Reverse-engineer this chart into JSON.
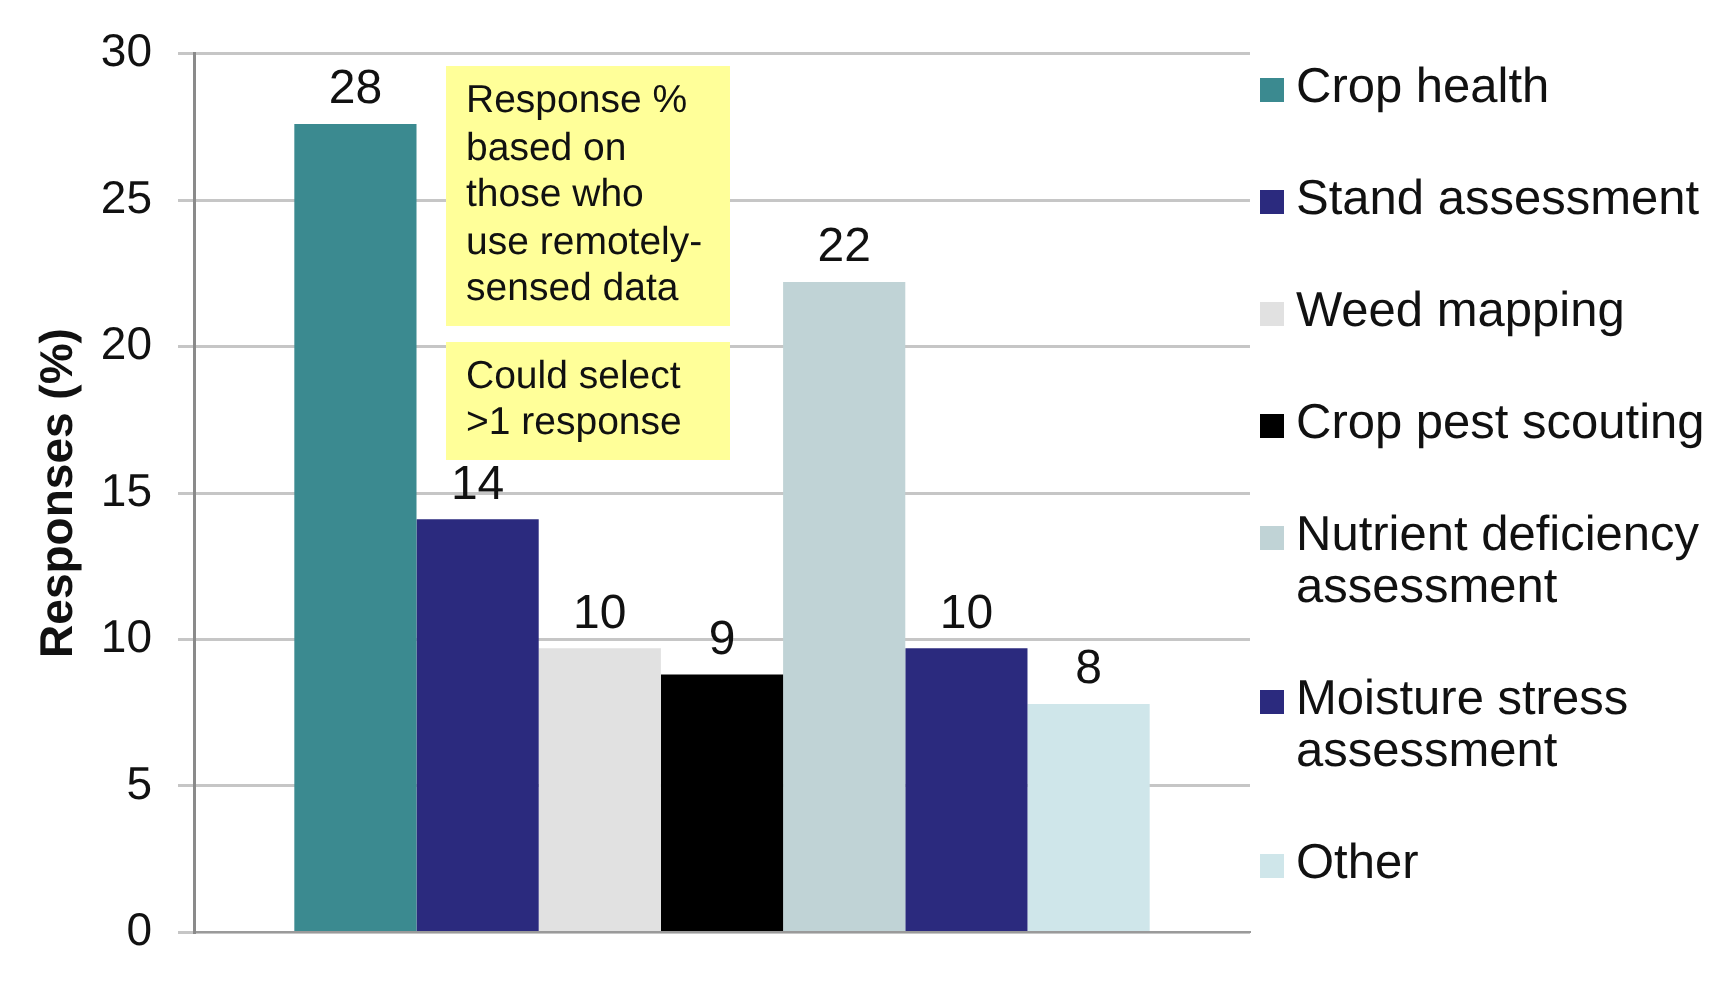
{
  "chart_data": {
    "type": "bar",
    "categories": [
      null
    ],
    "series": [
      {
        "name": "Crop health",
        "color": "#3b8a90",
        "values": [
          27.6
        ],
        "value_labels": [
          "28"
        ]
      },
      {
        "name": "Stand assessment",
        "color": "#2b2a7e",
        "values": [
          14.1
        ],
        "value_labels": [
          "14"
        ]
      },
      {
        "name": "Weed mapping",
        "color": "#e1e1e1",
        "values": [
          9.7
        ],
        "value_labels": [
          "10"
        ]
      },
      {
        "name": "Crop pest scouting",
        "color": "#000000",
        "values": [
          8.8
        ],
        "value_labels": [
          "9"
        ]
      },
      {
        "name": "Nutrient deficiency assessment",
        "color": "#c0d3d6",
        "values": [
          22.2
        ],
        "value_labels": [
          "22"
        ]
      },
      {
        "name": "Moisture stress assessment",
        "color": "#2b2a7e",
        "values": [
          9.7
        ],
        "value_labels": [
          "10"
        ]
      },
      {
        "name": "Other",
        "color": "#cfe6ea",
        "values": [
          7.8
        ],
        "value_labels": [
          "8"
        ]
      }
    ],
    "ylabel": "Responses (%)",
    "ylim": [
      0,
      30
    ],
    "yticks": [
      0,
      5,
      10,
      15,
      20,
      25,
      30
    ],
    "grid": "y",
    "legend": "right",
    "annotations": [
      "Response % based on those who use remotely-sensed data",
      "Could select >1 response"
    ]
  }
}
